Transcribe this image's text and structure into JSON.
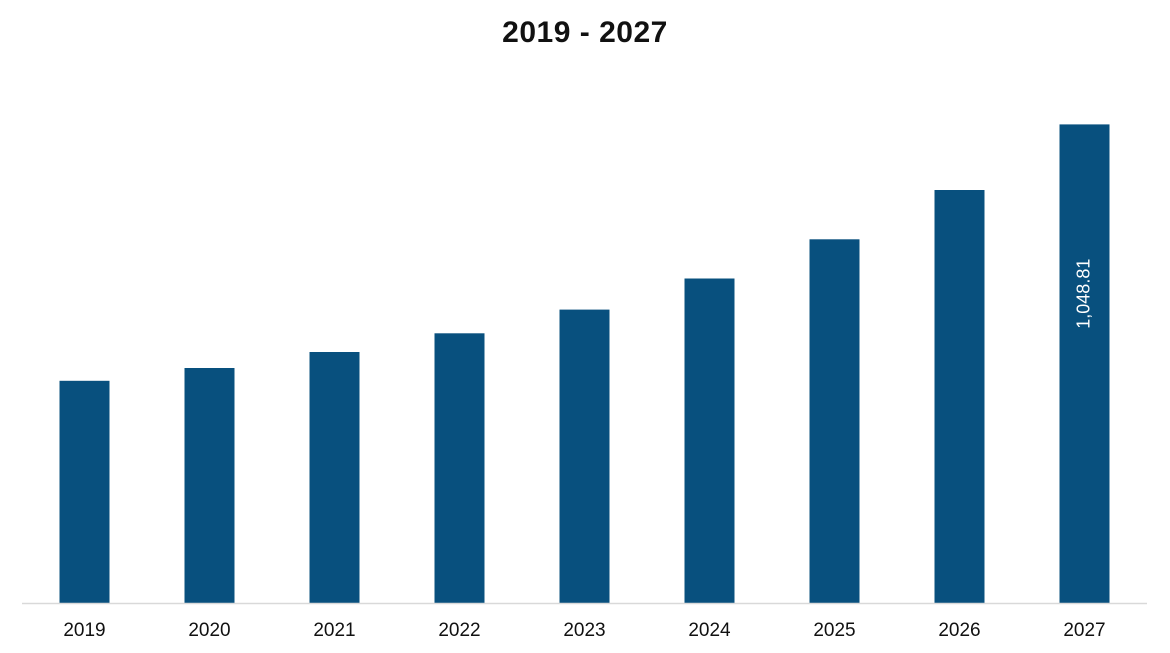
{
  "chart_data": {
    "type": "bar",
    "title": "2019 - 2027",
    "xlabel": "",
    "ylabel": "",
    "categories": [
      "2019",
      "2020",
      "2021",
      "2022",
      "2023",
      "2024",
      "2025",
      "2026",
      "2027"
    ],
    "values": [
      487,
      515,
      550,
      591,
      643,
      711,
      797,
      905,
      1048.81
    ],
    "data_labels": [
      "",
      "",
      "",
      "",
      "",
      "",
      "",
      "",
      "1,048.81"
    ],
    "ylim": [
      0,
      1100
    ],
    "grid": false,
    "legend": "none",
    "bar_color": "#08507e",
    "axis_color": "#d9d9d9"
  }
}
